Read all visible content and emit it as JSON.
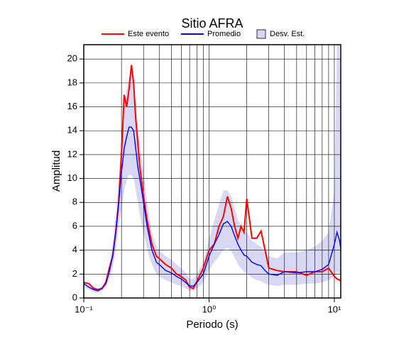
{
  "chart_data": {
    "type": "line",
    "title": "Sitio AFRA",
    "x_label": "Periodo (s)",
    "y_label": "Amplitud",
    "log_x": true,
    "grid": true,
    "x": [
      0.1,
      0.11,
      0.12,
      0.13,
      0.14,
      0.15,
      0.16,
      0.17,
      0.18,
      0.19,
      0.2,
      0.21,
      0.22,
      0.23,
      0.24,
      0.25,
      0.26,
      0.27,
      0.28,
      0.3,
      0.32,
      0.35,
      0.38,
      0.4,
      0.45,
      0.5,
      0.55,
      0.6,
      0.65,
      0.7,
      0.75,
      0.8,
      0.9,
      1.0,
      1.1,
      1.2,
      1.3,
      1.4,
      1.5,
      1.6,
      1.7,
      1.8,
      1.9,
      2.0,
      2.2,
      2.4,
      2.6,
      2.8,
      3.0,
      3.5,
      4,
      5,
      6,
      7,
      8,
      9,
      10,
      10.5,
      11,
      11.25
    ],
    "series": [
      {
        "name": "Este evento",
        "color": "#ff0000",
        "values": [
          1.3,
          1.2,
          0.8,
          0.7,
          0.8,
          1.3,
          2.5,
          3.5,
          5.5,
          8,
          12,
          17,
          16,
          17.5,
          19.5,
          18,
          15,
          13,
          11,
          8.5,
          6.5,
          4.5,
          3.5,
          3.3,
          2.8,
          2.5,
          2,
          1.8,
          1.5,
          0.9,
          0.8,
          1.4,
          2.5,
          4,
          4.5,
          6,
          6.8,
          8.5,
          7.5,
          6,
          5,
          6,
          5.5,
          8.3,
          5,
          5,
          5.6,
          4,
          2.5,
          2.3,
          2.2,
          2.2,
          1.9,
          2.2,
          2.2,
          2.5,
          1.8,
          1.6,
          1.5,
          1.4
        ]
      },
      {
        "name": "Promedio",
        "color": "#0000ff",
        "values": [
          1.2,
          0.9,
          0.7,
          0.6,
          0.8,
          1.2,
          2.2,
          3.5,
          5.5,
          8,
          10.5,
          12.5,
          13.5,
          14.3,
          14.3,
          14,
          12.5,
          11,
          10,
          8,
          6,
          4,
          3,
          2.8,
          2.3,
          2.1,
          1.8,
          1.6,
          1.3,
          1.0,
          1.0,
          1.3,
          2.0,
          3.5,
          4.5,
          5.3,
          6.2,
          6.4,
          6.0,
          5.2,
          4.5,
          4.0,
          3.6,
          3.5,
          3.0,
          2.8,
          2.7,
          2.3,
          2.0,
          1.9,
          2.2,
          2.1,
          2.2,
          2.2,
          2.4,
          2.8,
          4.5,
          5.5,
          4.8,
          4.2
        ]
      },
      {
        "name": "Desv. Est.",
        "color": "#d8d8f4",
        "band": true,
        "lower": [
          0.9,
          0.7,
          0.5,
          0.45,
          0.6,
          0.9,
          1.6,
          2.5,
          4,
          6,
          7.5,
          9,
          9.8,
          10.3,
          10.3,
          10,
          9,
          8,
          7,
          5.5,
          4,
          2.8,
          2,
          1.8,
          1.5,
          1.3,
          1.1,
          1,
          0.8,
          0.6,
          0.6,
          0.8,
          1.3,
          2.3,
          3,
          3.5,
          4,
          4.2,
          3.9,
          3.4,
          2.8,
          2.5,
          2.2,
          2,
          1.7,
          1.5,
          1.4,
          1.2,
          1.1,
          1,
          1.1,
          1.1,
          1.2,
          1.2,
          1.3,
          1.5,
          1.8,
          2.2,
          2,
          1.8
        ],
        "upper": [
          1.5,
          1.1,
          0.9,
          0.8,
          1.0,
          1.6,
          2.8,
          4.5,
          7,
          10,
          13.5,
          16,
          17.5,
          18.5,
          19,
          18.5,
          16.5,
          14.5,
          13,
          10.5,
          8,
          5.5,
          4.3,
          4,
          3.5,
          3.2,
          2.8,
          2.5,
          2.1,
          1.6,
          1.6,
          2,
          3,
          5,
          6.5,
          7.8,
          9,
          9,
          8.5,
          7.5,
          6.5,
          6,
          5.5,
          5.5,
          4.8,
          4.5,
          4.3,
          3.8,
          3.5,
          3.3,
          3.8,
          3.8,
          4,
          4.3,
          4.8,
          5.5,
          9,
          21.2,
          21.2,
          16
        ]
      }
    ],
    "xlim": [
      0.1,
      11.25
    ],
    "xticks": [
      {
        "value": 0.1,
        "label": "10⁻¹"
      },
      {
        "value": 1,
        "label": "10⁰"
      },
      {
        "value": 10,
        "label": "10¹"
      }
    ],
    "xminorticks": [
      0.2,
      0.3,
      0.4,
      0.5,
      0.6,
      0.7,
      0.8,
      0.9,
      2,
      3,
      4,
      5,
      6,
      7,
      8,
      9
    ],
    "ylim": [
      0,
      21.2
    ],
    "yticks": [
      0,
      2,
      4,
      6,
      8,
      10,
      12,
      14,
      16,
      18,
      20
    ]
  }
}
